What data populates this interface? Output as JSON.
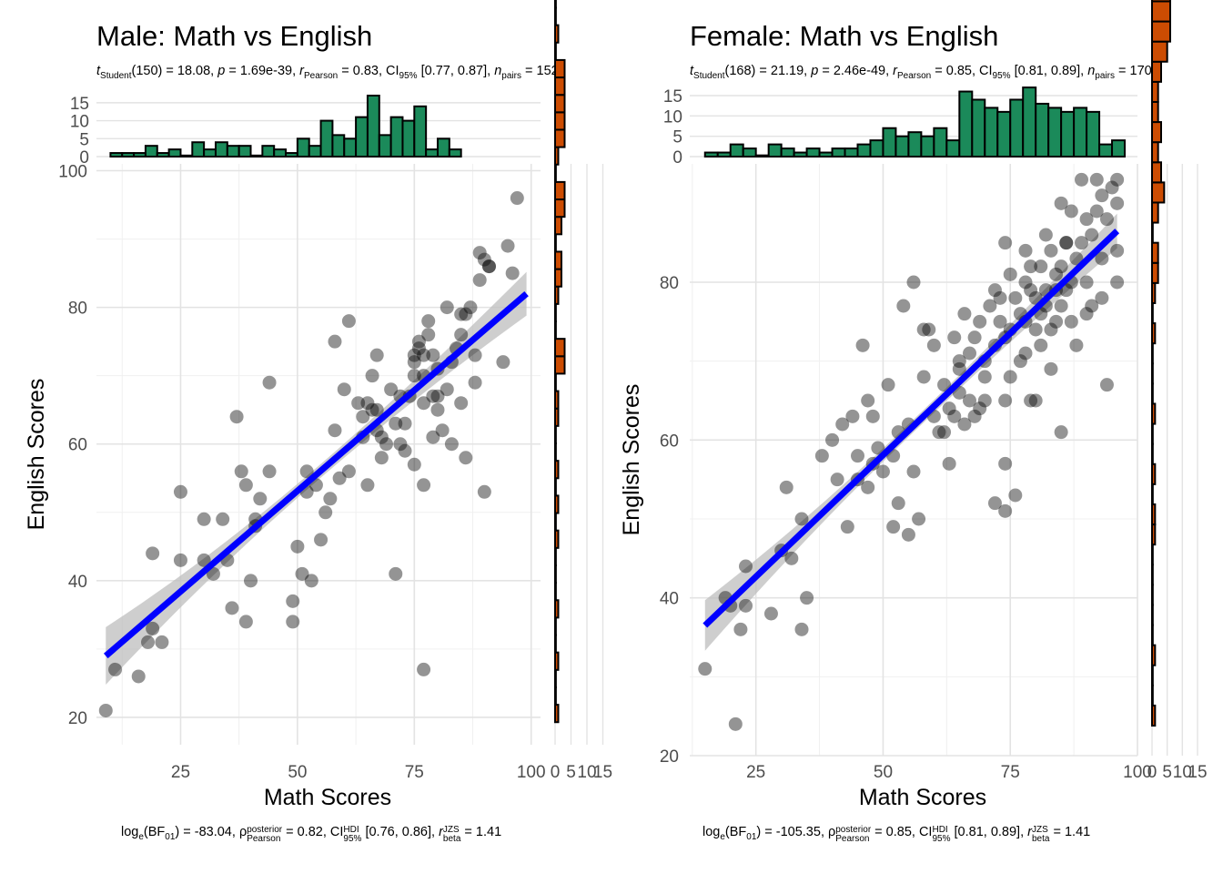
{
  "chart_data": [
    {
      "type": "scatter",
      "title": "Male: Math vs English",
      "subtitle": {
        "t_label": "t",
        "t_sub": "Student",
        "df": "(150) = 18.08, ",
        "p_label": "p",
        "p_value": " = 1.69e-39, ",
        "r_hat": "r",
        "r_sub": "Pearson",
        "r_value": " = 0.83, CI",
        "ci_sub": "95%",
        "ci_value": " [0.77, 0.87], ",
        "n_label": "n",
        "n_sub": "pairs",
        "n_value": " = 152"
      },
      "caption": {
        "bf_prefix": "log",
        "bf_e": "e",
        "bf_mid": "(BF",
        "bf_sub": "01",
        "bf_value": ") = -83.04, ",
        "rho": "ρ",
        "rho_sup": "posterior",
        "rho_sub": "Pearson",
        "rho_value": " = 0.82, CI",
        "hdi_sup": "HDI",
        "hdi_sub": "95%",
        "hdi_value": " [0.76, 0.86], ",
        "r_label": "r",
        "r_sup": "JZS",
        "r_sub": "beta",
        "r_value": " = 1.41"
      },
      "xlabel": "Math Scores",
      "ylabel": "English Scores",
      "xlim": [
        7,
        102
      ],
      "ylim": [
        16,
        101
      ],
      "x_ticks": [
        25,
        50,
        75,
        100
      ],
      "y_ticks": [
        20,
        40,
        60,
        80,
        100
      ],
      "grid": true,
      "point_color": "#000000",
      "point_opacity": 0.42,
      "line_color": "#0000ff",
      "band_color": "#bebebe",
      "regression": {
        "x": [
          9,
          99
        ],
        "y": [
          29,
          82
        ],
        "band_ends": [
          4.2,
          1.0,
          3.2
        ]
      },
      "points": [
        [
          9,
          21
        ],
        [
          11,
          27
        ],
        [
          16,
          26
        ],
        [
          18,
          31
        ],
        [
          19,
          44
        ],
        [
          19,
          33
        ],
        [
          21,
          31
        ],
        [
          25,
          53
        ],
        [
          25,
          43
        ],
        [
          30,
          49
        ],
        [
          30,
          43
        ],
        [
          32,
          41
        ],
        [
          34,
          49
        ],
        [
          35,
          43
        ],
        [
          36,
          36
        ],
        [
          37,
          64
        ],
        [
          38,
          56
        ],
        [
          39,
          54
        ],
        [
          39,
          34
        ],
        [
          40,
          40
        ],
        [
          41,
          49
        ],
        [
          41,
          48
        ],
        [
          42,
          52
        ],
        [
          44,
          69
        ],
        [
          44,
          56
        ],
        [
          49,
          37
        ],
        [
          49,
          34
        ],
        [
          50,
          45
        ],
        [
          51,
          41
        ],
        [
          52,
          56
        ],
        [
          52,
          53
        ],
        [
          53,
          40
        ],
        [
          54,
          54
        ],
        [
          55,
          46
        ],
        [
          56,
          50
        ],
        [
          57,
          52
        ],
        [
          58,
          75
        ],
        [
          58,
          62
        ],
        [
          59,
          55
        ],
        [
          60,
          68
        ],
        [
          61,
          78
        ],
        [
          61,
          56
        ],
        [
          63,
          66
        ],
        [
          64,
          61
        ],
        [
          64,
          64
        ],
        [
          65,
          54
        ],
        [
          65,
          66
        ],
        [
          66,
          70
        ],
        [
          66,
          65
        ],
        [
          67,
          62
        ],
        [
          67,
          73
        ],
        [
          67,
          65
        ],
        [
          68,
          61
        ],
        [
          68,
          58
        ],
        [
          69,
          60
        ],
        [
          70,
          68
        ],
        [
          71,
          41
        ],
        [
          71,
          63
        ],
        [
          72,
          60
        ],
        [
          72,
          67
        ],
        [
          73,
          59
        ],
        [
          73,
          63
        ],
        [
          74,
          67
        ],
        [
          75,
          57
        ],
        [
          75,
          70
        ],
        [
          75,
          72
        ],
        [
          75,
          73
        ],
        [
          76,
          74
        ],
        [
          76,
          75
        ],
        [
          77,
          70
        ],
        [
          77,
          73
        ],
        [
          77,
          66
        ],
        [
          77,
          54
        ],
        [
          77,
          27
        ],
        [
          78,
          78
        ],
        [
          78,
          76
        ],
        [
          79,
          67
        ],
        [
          79,
          61
        ],
        [
          79,
          73
        ],
        [
          80,
          71
        ],
        [
          80,
          67
        ],
        [
          80,
          65
        ],
        [
          81,
          62
        ],
        [
          82,
          68
        ],
        [
          82,
          80
        ],
        [
          83,
          72
        ],
        [
          83,
          60
        ],
        [
          84,
          74
        ],
        [
          85,
          79
        ],
        [
          85,
          76
        ],
        [
          85,
          66
        ],
        [
          86,
          79
        ],
        [
          86,
          58
        ],
        [
          87,
          80
        ],
        [
          88,
          73
        ],
        [
          88,
          69
        ],
        [
          89,
          88
        ],
        [
          89,
          84
        ],
        [
          90,
          87
        ],
        [
          90,
          53
        ],
        [
          91,
          86
        ],
        [
          91,
          86
        ],
        [
          94,
          72
        ],
        [
          95,
          89
        ],
        [
          96,
          85
        ],
        [
          97,
          96
        ]
      ],
      "x_hist": {
        "breaks_start": 10,
        "bin_width": 2.5,
        "counts": [
          1,
          1,
          1,
          3,
          1,
          2,
          0,
          4,
          2,
          4,
          3,
          3,
          0,
          3,
          2,
          1,
          5,
          3,
          10,
          6,
          5,
          11,
          17,
          6,
          11,
          10,
          14,
          2,
          5,
          2
        ],
        "color": "#1b8a5a",
        "axis_ticks": [
          0,
          5,
          10,
          15
        ],
        "axis_max": 17
      },
      "y_hist": {
        "breaks_start": 19.3,
        "bin_width": 2.55,
        "counts": [
          1,
          0,
          0,
          1,
          0,
          0,
          1,
          0,
          0,
          0,
          1,
          0,
          1,
          0,
          1,
          0,
          0,
          1,
          1,
          0,
          3,
          3,
          0,
          0,
          1,
          2,
          2,
          0,
          2,
          3,
          3,
          0,
          1,
          3,
          3,
          3,
          3,
          3,
          0,
          1,
          0,
          0,
          1
        ],
        "color": "#cc4c02",
        "axis_ticks": [
          0,
          5,
          10,
          15
        ],
        "axis_max": 16
      }
    },
    {
      "type": "scatter",
      "title": "Female: Math vs English",
      "subtitle": {
        "t_label": "t",
        "t_sub": "Student",
        "df": "(168) = 21.19, ",
        "p_label": "p",
        "p_value": " = 2.46e-49, ",
        "r_hat": "r",
        "r_sub": "Pearson",
        "r_value": " = 0.85, CI",
        "ci_sub": "95%",
        "ci_value": " [0.81, 0.89], ",
        "n_label": "n",
        "n_sub": "pairs",
        "n_value": " = 170"
      },
      "caption": {
        "bf_prefix": "log",
        "bf_e": "e",
        "bf_mid": "(BF",
        "bf_sub": "01",
        "bf_value": ") = -105.35, ",
        "rho": "ρ",
        "rho_sup": "posterior",
        "rho_sub": "Pearson",
        "rho_value": " = 0.85, CI",
        "hdi_sup": "HDI",
        "hdi_sub": "95%",
        "hdi_value": " [0.81, 0.89], ",
        "r_label": "r",
        "r_sup": "JZS",
        "r_sub": "beta",
        "r_value": " = 1.41"
      },
      "xlabel": "Math Scores",
      "ylabel": "English Scores",
      "xlim": [
        12,
        100
      ],
      "ylim": [
        20,
        95
      ],
      "x_ticks": [
        25,
        50,
        75,
        100
      ],
      "y_ticks": [
        20,
        40,
        60,
        80
      ],
      "grid": true,
      "point_color": "#000000",
      "point_opacity": 0.42,
      "line_color": "#0000ff",
      "band_color": "#bebebe",
      "regression": {
        "x": [
          15,
          96
        ],
        "y": [
          36.5,
          86.5
        ],
        "band_ends": [
          3.2,
          0.8,
          2.2
        ]
      },
      "points": [
        [
          15,
          31
        ],
        [
          19,
          40
        ],
        [
          20,
          39
        ],
        [
          21,
          24
        ],
        [
          22,
          36
        ],
        [
          23,
          44
        ],
        [
          23,
          39
        ],
        [
          28,
          38
        ],
        [
          30,
          46
        ],
        [
          31,
          54
        ],
        [
          32,
          45
        ],
        [
          34,
          50
        ],
        [
          34,
          36
        ],
        [
          35,
          40
        ],
        [
          38,
          58
        ],
        [
          40,
          60
        ],
        [
          41,
          55
        ],
        [
          42,
          62
        ],
        [
          43,
          49
        ],
        [
          44,
          63
        ],
        [
          45,
          58
        ],
        [
          45,
          55
        ],
        [
          46,
          72
        ],
        [
          47,
          54
        ],
        [
          47,
          65
        ],
        [
          48,
          63
        ],
        [
          48,
          57
        ],
        [
          49,
          59
        ],
        [
          50,
          56
        ],
        [
          51,
          67
        ],
        [
          52,
          58
        ],
        [
          52,
          49
        ],
        [
          53,
          61
        ],
        [
          53,
          52
        ],
        [
          54,
          77
        ],
        [
          55,
          62
        ],
        [
          55,
          48
        ],
        [
          56,
          80
        ],
        [
          56,
          56
        ],
        [
          57,
          50
        ],
        [
          58,
          74
        ],
        [
          58,
          68
        ],
        [
          59,
          74
        ],
        [
          60,
          72
        ],
        [
          60,
          63
        ],
        [
          61,
          61
        ],
        [
          62,
          67
        ],
        [
          62,
          61
        ],
        [
          63,
          64
        ],
        [
          63,
          57
        ],
        [
          64,
          63
        ],
        [
          64,
          73
        ],
        [
          65,
          70
        ],
        [
          65,
          69
        ],
        [
          65,
          66
        ],
        [
          66,
          62
        ],
        [
          66,
          76
        ],
        [
          67,
          71
        ],
        [
          67,
          65
        ],
        [
          68,
          73
        ],
        [
          68,
          63
        ],
        [
          69,
          64
        ],
        [
          69,
          75
        ],
        [
          70,
          70
        ],
        [
          70,
          68
        ],
        [
          70,
          65
        ],
        [
          71,
          77
        ],
        [
          72,
          72
        ],
        [
          72,
          79
        ],
        [
          72,
          52
        ],
        [
          73,
          75
        ],
        [
          73,
          78
        ],
        [
          74,
          73
        ],
        [
          74,
          65
        ],
        [
          74,
          57
        ],
        [
          74,
          51
        ],
        [
          74,
          85
        ],
        [
          75,
          81
        ],
        [
          75,
          68
        ],
        [
          75,
          74
        ],
        [
          76,
          78
        ],
        [
          76,
          53
        ],
        [
          77,
          76
        ],
        [
          77,
          70
        ],
        [
          78,
          84
        ],
        [
          78,
          80
        ],
        [
          78,
          75
        ],
        [
          78,
          71
        ],
        [
          79,
          82
        ],
        [
          79,
          79
        ],
        [
          79,
          65
        ],
        [
          80,
          78
        ],
        [
          80,
          74
        ],
        [
          80,
          65
        ],
        [
          81,
          82
        ],
        [
          81,
          76
        ],
        [
          81,
          72
        ],
        [
          82,
          77
        ],
        [
          82,
          86
        ],
        [
          82,
          79
        ],
        [
          83,
          74
        ],
        [
          83,
          84
        ],
        [
          83,
          69
        ],
        [
          84,
          81
        ],
        [
          84,
          79
        ],
        [
          84,
          75
        ],
        [
          85,
          82
        ],
        [
          85,
          90
        ],
        [
          85,
          77
        ],
        [
          85,
          61
        ],
        [
          86,
          85
        ],
        [
          86,
          79
        ],
        [
          86,
          85
        ],
        [
          87,
          89
        ],
        [
          87,
          80
        ],
        [
          87,
          75
        ],
        [
          88,
          83
        ],
        [
          88,
          72
        ],
        [
          89,
          93
        ],
        [
          89,
          85
        ],
        [
          90,
          88
        ],
        [
          90,
          80
        ],
        [
          90,
          76
        ],
        [
          91,
          86
        ],
        [
          91,
          77
        ],
        [
          92,
          93
        ],
        [
          92,
          89
        ],
        [
          93,
          83
        ],
        [
          93,
          78
        ],
        [
          93,
          91
        ],
        [
          94,
          88
        ],
        [
          94,
          67
        ],
        [
          95,
          92
        ],
        [
          96,
          90
        ],
        [
          96,
          93
        ],
        [
          96,
          84
        ],
        [
          96,
          80
        ]
      ],
      "x_hist": {
        "breaks_start": 15,
        "bin_width": 2.5,
        "counts": [
          1,
          1,
          3,
          2,
          0,
          3,
          2,
          1,
          2,
          1,
          2,
          2,
          3,
          4,
          7,
          5,
          6,
          5,
          7,
          4,
          16,
          14,
          12,
          11,
          14,
          17,
          13,
          12,
          11,
          12,
          11,
          3,
          4
        ],
        "color": "#1b8a5a",
        "axis_ticks": [
          0,
          5,
          10,
          15
        ],
        "axis_max": 15
      },
      "y_hist": {
        "breaks_start": 23.8,
        "bin_width": 2.55,
        "counts": [
          1,
          0,
          0,
          1,
          0,
          0,
          0,
          0,
          0,
          1,
          1,
          0,
          1,
          0,
          0,
          1,
          0,
          0,
          0,
          1,
          0,
          1,
          2,
          2,
          0,
          2,
          4,
          3,
          2,
          3,
          2,
          2,
          3,
          5,
          6,
          6,
          6,
          3,
          2,
          2,
          1,
          1
        ],
        "color": "#cc4c02",
        "axis_ticks": [
          0,
          5,
          10,
          15
        ],
        "axis_max": 15
      }
    }
  ]
}
